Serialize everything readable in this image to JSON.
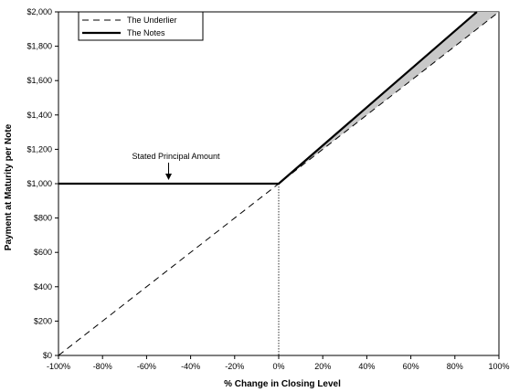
{
  "chart_data": {
    "type": "line",
    "xlabel": "% Change in Closing Level",
    "ylabel": "Payment at Maturity per Note",
    "xlim": [
      -100,
      100
    ],
    "ylim": [
      0,
      2000
    ],
    "x_ticks": [
      "-100%",
      "-80%",
      "-60%",
      "-40%",
      "-20%",
      "0%",
      "20%",
      "40%",
      "60%",
      "80%",
      "100%"
    ],
    "y_ticks": [
      "$0",
      "$200",
      "$400",
      "$600",
      "$800",
      "$1,000",
      "$1,200",
      "$1,400",
      "$1,600",
      "$1,800",
      "$2,000"
    ],
    "grid": false,
    "legend_position": "top-left",
    "series": [
      {
        "name": "The Underlier",
        "style": "dashed",
        "color": "#000000",
        "x": [
          -100,
          0,
          100
        ],
        "y": [
          0,
          1000,
          2000
        ]
      },
      {
        "name": "The Notes",
        "style": "solid-bold",
        "color": "#000000",
        "x": [
          -100,
          0,
          90
        ],
        "y": [
          1000,
          1000,
          2000
        ]
      }
    ],
    "shaded_region": {
      "between": [
        "The Notes",
        "The Underlier"
      ],
      "x_range": [
        0,
        100
      ],
      "color": "#c8c8c8"
    },
    "reference_line": {
      "x": 0,
      "style": "dotted"
    },
    "annotations": [
      {
        "text": "Stated Principal Amount",
        "x": -50,
        "y": 1000,
        "arrow": "down"
      }
    ]
  }
}
